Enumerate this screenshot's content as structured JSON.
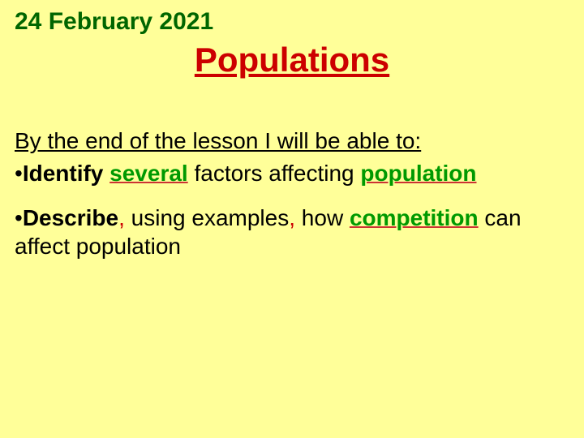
{
  "date": "24 February 2021",
  "title": "Populations",
  "objectives_heading": "By the end of the lesson I will be able to:",
  "bullet1": {
    "dot": "•",
    "word_identify": "Identify",
    "space1": " ",
    "word_several": "several",
    "middle": " factors affecting ",
    "word_population": "population"
  },
  "bullet2": {
    "dot": "•",
    "word_describe": "Describe",
    "comma1": ",",
    "part1": " using examples",
    "comma2": ",",
    "part2": " how ",
    "word_competition": "competition",
    "part3": " can affect population"
  },
  "colors": {
    "background": "#ffff99",
    "date": "#006600",
    "title": "#cc0000",
    "body_text": "#000000",
    "green_word": "#009900",
    "red_underline": "#cc3333",
    "red_comma": "#cc0000"
  },
  "fonts": {
    "family": "Comic Sans MS",
    "date_size": 30,
    "title_size": 42,
    "body_size": 28
  }
}
